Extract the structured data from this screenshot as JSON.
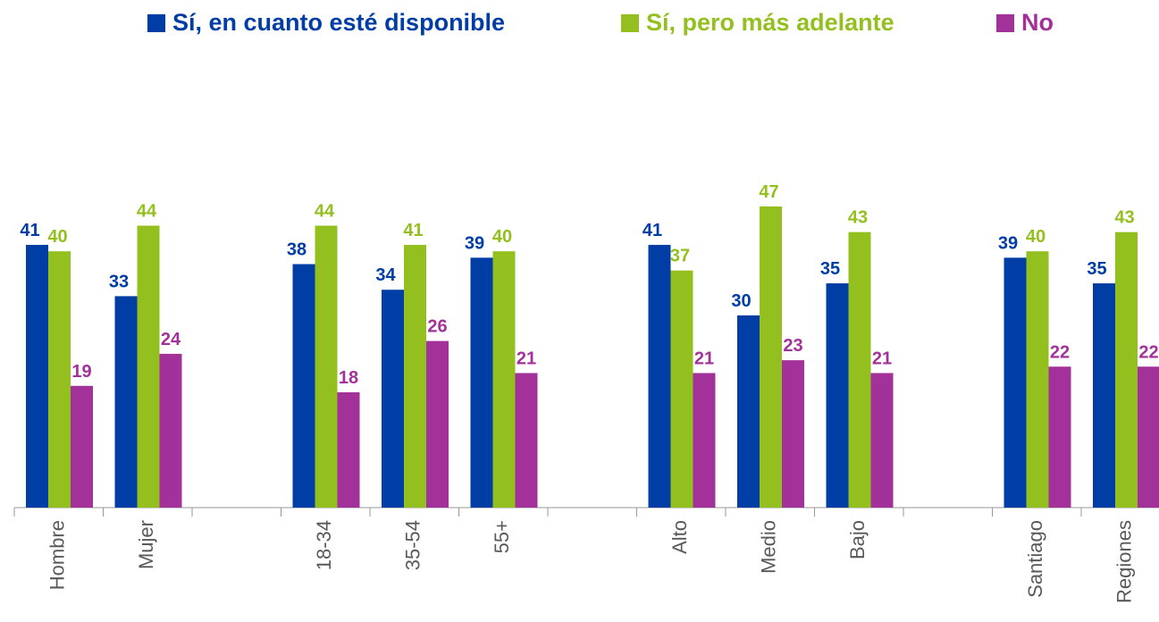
{
  "chart_data": {
    "type": "bar",
    "categories": [
      "Hombre",
      "Mujer",
      null,
      "18-34",
      "35-54",
      "55+",
      null,
      "Alto",
      "Medio",
      "Bajo",
      null,
      "Santiago",
      "Regiones"
    ],
    "series": [
      {
        "name": "Sí, en cuanto esté disponible",
        "color": "#003da5",
        "values": [
          41,
          33,
          null,
          38,
          34,
          39,
          null,
          41,
          30,
          35,
          null,
          39,
          35
        ]
      },
      {
        "name": "Sí, pero más adelante",
        "color": "#93c01f",
        "values": [
          40,
          44,
          null,
          44,
          41,
          40,
          null,
          37,
          47,
          43,
          null,
          40,
          43
        ]
      },
      {
        "name": "No",
        "color": "#a3319a",
        "values": [
          19,
          24,
          null,
          18,
          26,
          21,
          null,
          21,
          23,
          21,
          null,
          22,
          22
        ]
      }
    ],
    "ylim": [
      0,
      60
    ],
    "legend": "top"
  }
}
